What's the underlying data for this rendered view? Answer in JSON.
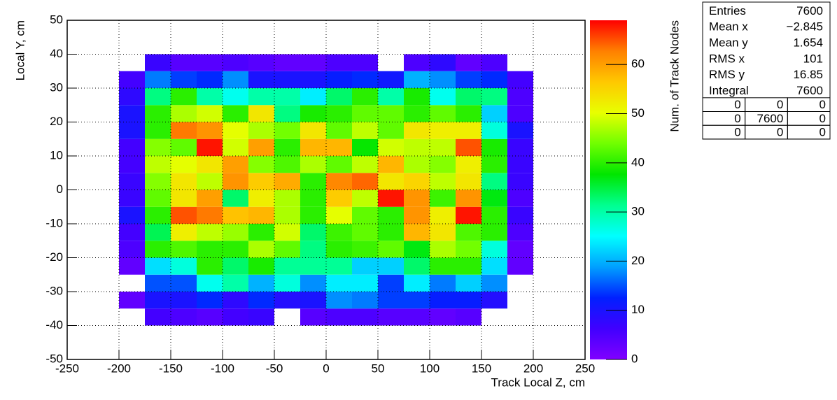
{
  "chart_data": {
    "type": "heatmap",
    "xlabel": "Track Local Z, cm",
    "ylabel": "Local Y, cm",
    "zlabel": "Num. of Track Nodes",
    "xlim": [
      -250,
      250
    ],
    "ylim": [
      -50,
      50
    ],
    "zlim": [
      0,
      69
    ],
    "xticks": [
      -250,
      -200,
      -150,
      -100,
      -50,
      0,
      50,
      100,
      150,
      200,
      250
    ],
    "yticks": [
      -50,
      -40,
      -30,
      -20,
      -10,
      0,
      10,
      20,
      30,
      40,
      50
    ],
    "zticks": [
      0,
      10,
      20,
      30,
      40,
      50,
      60
    ],
    "grid": true,
    "palette": [
      "#8000ff",
      "#4000ff",
      "#0020ff",
      "#00a0ff",
      "#00ffff",
      "#00ff90",
      "#00e600",
      "#70ff00",
      "#e8ff00",
      "#ffc800",
      "#ff8000",
      "#ff0000"
    ],
    "xbins": [
      -200,
      -175,
      -150,
      -125,
      -100,
      -75,
      -50,
      -25,
      0,
      25,
      50,
      75,
      100,
      125,
      150,
      175,
      200
    ],
    "ybins": [
      -40,
      -35,
      -30,
      -25,
      -20,
      -15,
      -10,
      -5,
      0,
      5,
      10,
      15,
      20,
      25,
      30,
      35,
      40
    ],
    "z": [
      [
        null,
        6,
        5,
        4,
        6,
        7,
        null,
        4,
        5,
        5,
        4,
        4,
        3,
        4,
        null,
        null
      ],
      [
        3,
        10,
        10,
        13,
        8,
        13,
        9,
        10,
        18,
        17,
        14,
        14,
        12,
        12,
        9,
        null
      ],
      [
        null,
        15,
        15,
        26,
        30,
        20,
        27,
        18,
        24,
        24,
        14,
        24,
        17,
        22,
        18,
        null
      ],
      [
        3,
        23,
        27,
        40,
        33,
        39,
        31,
        31,
        31,
        22,
        22,
        33,
        40,
        40,
        23,
        3
      ],
      [
        5,
        40,
        42,
        40,
        40,
        47,
        43,
        32,
        40,
        41,
        43,
        37,
        47,
        44,
        27,
        3
      ],
      [
        6,
        34,
        52,
        48,
        46,
        40,
        49,
        33,
        41,
        43,
        40,
        58,
        53,
        42,
        40,
        5
      ],
      [
        10,
        40,
        65,
        63,
        57,
        58,
        47,
        40,
        50,
        43,
        40,
        61,
        52,
        68,
        40,
        7
      ],
      [
        7,
        43,
        53,
        60,
        33,
        52,
        47,
        40,
        56,
        48,
        68,
        61,
        41,
        61,
        37,
        5
      ],
      [
        7,
        45,
        53,
        48,
        61,
        56,
        59,
        40,
        62,
        64,
        53,
        55,
        48,
        53,
        32,
        7
      ],
      [
        6,
        48,
        50,
        53,
        60,
        45,
        42,
        47,
        43,
        48,
        58,
        47,
        45,
        52,
        40,
        7
      ],
      [
        6,
        45,
        43,
        68,
        49,
        60,
        40,
        58,
        58,
        38,
        49,
        48,
        48,
        65,
        39,
        7
      ],
      [
        10,
        40,
        63,
        61,
        50,
        47,
        44,
        53,
        43,
        48,
        43,
        53,
        52,
        52,
        27,
        10
      ],
      [
        10,
        40,
        47,
        49,
        40,
        53,
        32,
        39,
        40,
        43,
        43,
        40,
        43,
        40,
        22,
        5
      ],
      [
        8,
        32,
        40,
        30,
        26,
        30,
        30,
        24,
        33,
        40,
        30,
        39,
        26,
        33,
        32,
        5
      ],
      [
        6,
        17,
        14,
        13,
        18,
        10,
        10,
        10,
        12,
        13,
        11,
        20,
        18,
        14,
        13,
        6
      ],
      [
        null,
        7,
        4,
        4,
        5,
        4,
        3,
        3,
        5,
        5,
        null,
        5,
        8,
        3,
        5,
        null
      ]
    ],
    "stats": [
      {
        "name": "Entries",
        "value": 7600
      },
      {
        "name": "Mean x",
        "value": {
          "value": -2.845,
          "label": "−2.845"
        }
      },
      {
        "name": "Mean y",
        "value": 1.654
      },
      {
        "name": "RMS x",
        "value": 101
      },
      {
        "name": "RMS y",
        "value": 16.85
      },
      {
        "name": "Integral",
        "value": 7600
      }
    ],
    "overflow": [
      [
        0,
        0,
        0
      ],
      [
        0,
        7600,
        0
      ],
      [
        0,
        0,
        0
      ]
    ]
  }
}
